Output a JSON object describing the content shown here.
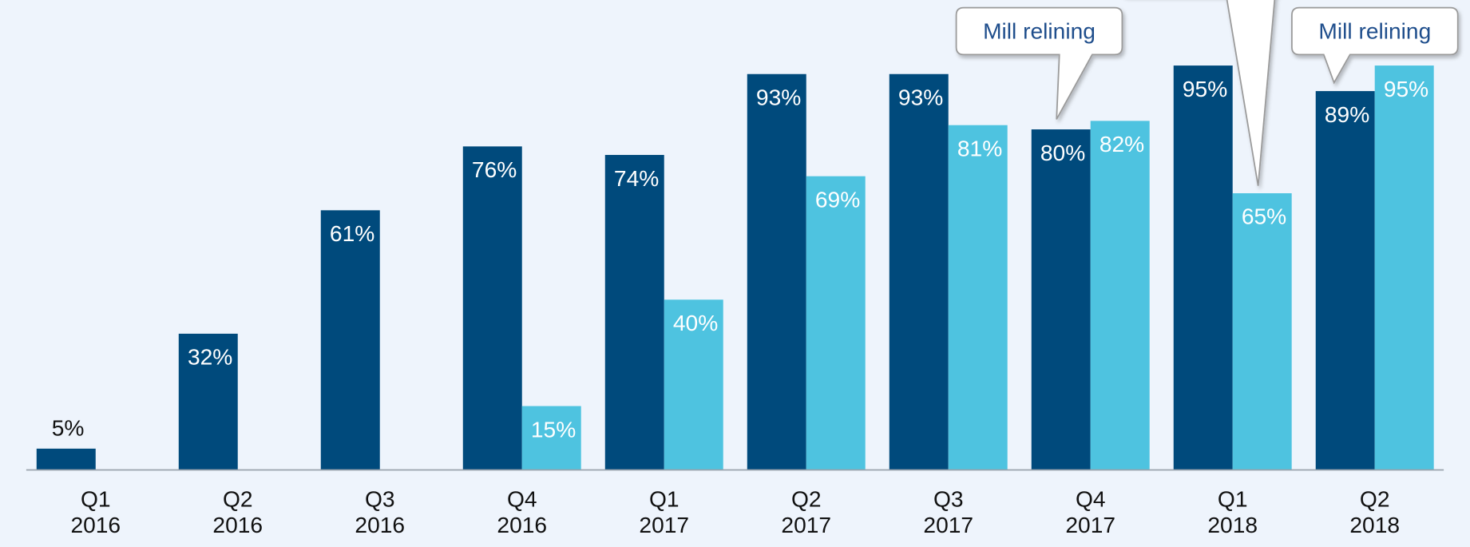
{
  "chart_data": {
    "type": "bar",
    "categories": [
      "Q1\n2016",
      "Q2\n2016",
      "Q3\n2016",
      "Q4\n2016",
      "Q1\n2017",
      "Q2\n2017",
      "Q3\n2017",
      "Q4\n2017",
      "Q1\n2018",
      "Q2\n2018"
    ],
    "series": [
      {
        "color": "#004a7c",
        "values": [
          5,
          32,
          61,
          76,
          74,
          93,
          93,
          80,
          95,
          89
        ],
        "value_labels": [
          "5%",
          "32%",
          "61%",
          "76%",
          "74%",
          "93%",
          "93%",
          "80%",
          "95%",
          "89%"
        ]
      },
      {
        "color": "#4ec3e0",
        "values": [
          null,
          null,
          null,
          15,
          40,
          69,
          81,
          82,
          65,
          95
        ],
        "value_labels": [
          null,
          null,
          null,
          "15%",
          "40%",
          "69%",
          "81%",
          "82%",
          "65%",
          "95%"
        ]
      }
    ],
    "ylim": [
      0,
      100
    ],
    "annotations": [
      "Mill relining",
      "Mill relining"
    ]
  }
}
